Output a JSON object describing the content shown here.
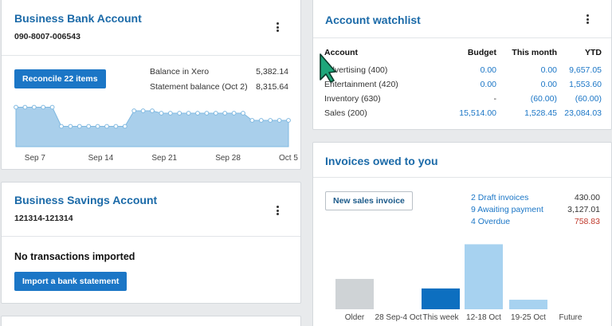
{
  "bank_account": {
    "title": "Business Bank Account",
    "number": "090-8007-006543",
    "reconcile_label": "Reconcile 22 items",
    "balance_xero_label": "Balance in Xero",
    "balance_xero_value": "5,382.14",
    "statement_label": "Statement balance (Oct 2)",
    "statement_value": "8,315.64",
    "x_ticks": [
      "Sep 7",
      "Sep 14",
      "Sep 21",
      "Sep 28",
      "Oct 5"
    ]
  },
  "savings_account": {
    "title": "Business Savings Account",
    "number": "121314-121314",
    "empty_text": "No transactions imported",
    "import_label": "Import a bank statement"
  },
  "watchlist": {
    "title": "Account watchlist",
    "headers": [
      "Account",
      "Budget",
      "This month",
      "YTD"
    ],
    "rows": [
      [
        "Advertising (400)",
        "0.00",
        "0.00",
        "9,657.05"
      ],
      [
        "Entertainment (420)",
        "0.00",
        "0.00",
        "1,553.60"
      ],
      [
        "Inventory (630)",
        "-",
        "(60.00)",
        "(60.00)"
      ],
      [
        "Sales (200)",
        "15,514.00",
        "1,528.45",
        "23,084.03"
      ]
    ]
  },
  "invoices": {
    "title": "Invoices owed to you",
    "new_label": "New sales invoice",
    "summary": [
      {
        "label": "2 Draft invoices",
        "amount": "430.00",
        "overdue": false
      },
      {
        "label": "9 Awaiting payment",
        "amount": "3,127.01",
        "overdue": false
      },
      {
        "label": "4 Overdue",
        "amount": "758.83",
        "overdue": true
      }
    ]
  },
  "colors": {
    "accent": "#1b76c6",
    "title": "#1b6aa8",
    "area_fill": "#a9cfeb",
    "area_line": "#7fb8e0",
    "overdue": "#c0392b",
    "bar_gray": "#cfd3d6",
    "bar_blue": "#0d6fc0",
    "bar_light": "#a7d2f0"
  },
  "icons": {
    "menu": "kebab-menu-icon",
    "cursor": "pointer-cursor-icon"
  },
  "chart_data": [
    {
      "type": "area",
      "x": [
        "Sep 5",
        "Sep 6",
        "Sep 7",
        "Sep 8",
        "Sep 9",
        "Sep 10",
        "Sep 11",
        "Sep 12",
        "Sep 13",
        "Sep 14",
        "Sep 15",
        "Sep 16",
        "Sep 17",
        "Sep 18",
        "Sep 19",
        "Sep 20",
        "Sep 21",
        "Sep 22",
        "Sep 23",
        "Sep 24",
        "Sep 25",
        "Sep 26",
        "Sep 27",
        "Sep 28",
        "Sep 29",
        "Sep 30",
        "Oct 1",
        "Oct 2",
        "Oct 3",
        "Oct 4",
        "Oct 5"
      ],
      "values": [
        8300,
        8300,
        8300,
        8300,
        8300,
        6700,
        6700,
        6700,
        6700,
        6700,
        6700,
        6700,
        6700,
        8000,
        8000,
        8000,
        7800,
        7800,
        7800,
        7800,
        7800,
        7800,
        7800,
        7800,
        7800,
        7800,
        7200,
        7200,
        7200,
        7200,
        7200
      ],
      "x_ticks": [
        "Sep 7",
        "Sep 14",
        "Sep 21",
        "Sep 28",
        "Oct 5"
      ],
      "ylim": [
        5000,
        9000
      ]
    },
    {
      "type": "bar",
      "categories": [
        "Older",
        "28 Sep-4 Oct",
        "This week",
        "12-18 Oct",
        "19-25 Oct",
        "Future"
      ],
      "values": [
        700,
        0,
        480,
        1500,
        220,
        0
      ],
      "ylim": [
        0,
        1600
      ]
    }
  ]
}
